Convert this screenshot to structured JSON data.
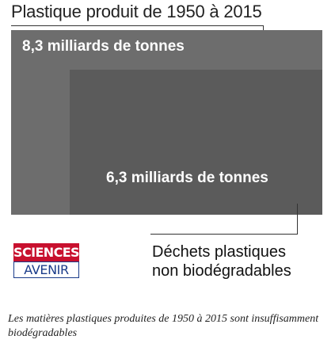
{
  "title": "Plastique produit de 1950 à 2015",
  "total": {
    "label": "8,3 milliards de tonnes",
    "value": 8.3,
    "unit": "milliards de tonnes"
  },
  "waste": {
    "label": "6,3 milliards de tonnes",
    "value": 6.3,
    "unit": "milliards de tonnes"
  },
  "legend": {
    "line1": "Déchets plastiques",
    "line2": "non biodégradables"
  },
  "logo": {
    "top": "SCIENCES",
    "bottom": "AVENIR"
  },
  "caption": "Les matières plastiques produites de 1950 à 2015 sont insuffisamment biodégradables",
  "colors": {
    "total_box": "#6d6d6d",
    "waste_box": "#5b5b5b",
    "logo_red": "#c8102e",
    "logo_blue": "#1a3c8a"
  }
}
